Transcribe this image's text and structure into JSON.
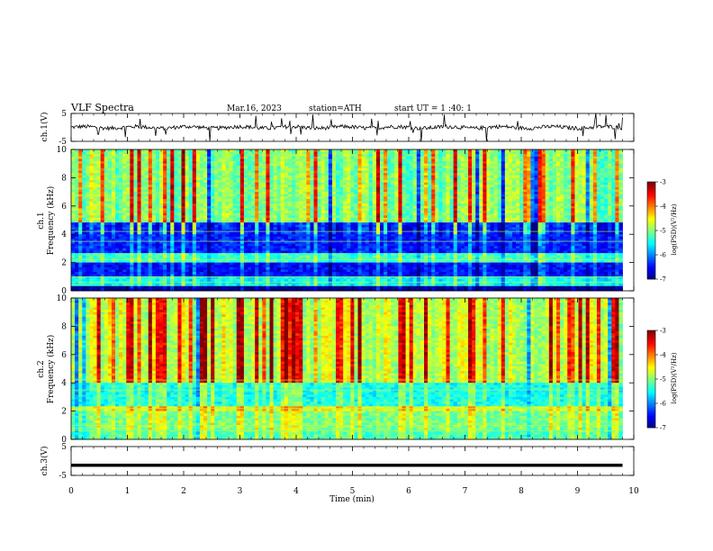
{
  "header": {
    "title": "VLF  Spectra",
    "date": "Mar.16, 2023",
    "station": "station=ATH",
    "start_ut": "start  UT  =    1  :40: 1"
  },
  "chart_data": [
    {
      "type": "line",
      "name": "ch1-waveform",
      "ylabel": "ch.1(V)",
      "ylim": [
        -5,
        5
      ],
      "yticks": [
        "5",
        "-5"
      ],
      "x_range_min": [
        0,
        9.8
      ],
      "baseline_v": 0,
      "note_values": "noisy signal near 0 V with occasional spikes"
    },
    {
      "type": "heatmap",
      "name": "ch1-spectrogram",
      "ylabel_line1": "ch.1",
      "ylabel_line2": "Frequency  (kHz)",
      "ylim": [
        0,
        10
      ],
      "yticks": [
        "0",
        "2",
        "4",
        "6",
        "8",
        "10"
      ],
      "xlim": [
        0,
        10
      ],
      "data_x_range": [
        0,
        9.8
      ],
      "colorbar": {
        "label": "log(PSD)(V²/Hz)",
        "range": [
          -7,
          -3
        ],
        "ticks": [
          "-3",
          "-4",
          "-5",
          "-6",
          "-7"
        ]
      },
      "bands_khz": [
        {
          "from": 0,
          "to": 0.4,
          "level": -7
        },
        {
          "from": 0.4,
          "to": 1.0,
          "level": -5.5
        },
        {
          "from": 1.0,
          "to": 2.0,
          "level": -6.5
        },
        {
          "from": 2.0,
          "to": 2.6,
          "level": -5.3
        },
        {
          "from": 2.6,
          "to": 4.8,
          "level": -6.4
        },
        {
          "from": 4.8,
          "to": 10,
          "level": -5.0
        }
      ]
    },
    {
      "type": "heatmap",
      "name": "ch2-spectrogram",
      "ylabel_line1": "ch.2",
      "ylabel_line2": "Frequency  (kHz)",
      "ylim": [
        0,
        10
      ],
      "yticks": [
        "0",
        "2",
        "4",
        "6",
        "8",
        "10"
      ],
      "xlim": [
        0,
        10
      ],
      "data_x_range": [
        0,
        9.8
      ],
      "colorbar": {
        "label": "log(PSD)(V²/Hz)",
        "range": [
          -7,
          -3
        ],
        "ticks": [
          "-3",
          "-4",
          "-5",
          "-6",
          "-7"
        ]
      },
      "bands_khz": [
        {
          "from": 0,
          "to": 0.6,
          "level": -5.2
        },
        {
          "from": 0.6,
          "to": 2.0,
          "level": -5.0
        },
        {
          "from": 2.0,
          "to": 2.4,
          "level": -4.6
        },
        {
          "from": 2.4,
          "to": 4.0,
          "level": -5.4
        },
        {
          "from": 4.0,
          "to": 10,
          "level": -4.7
        }
      ]
    },
    {
      "type": "line",
      "name": "ch3-waveform",
      "ylabel": "ch.3(V)",
      "ylim": [
        -5,
        5
      ],
      "yticks": [
        "5",
        "-5"
      ],
      "xlim": [
        0,
        10
      ],
      "x_range_min": [
        0,
        9.8
      ],
      "level_v": -1.5,
      "xlabel": "Time  (min)",
      "xticks": [
        "0",
        "1",
        "2",
        "3",
        "4",
        "5",
        "6",
        "7",
        "8",
        "9",
        "10"
      ]
    }
  ]
}
